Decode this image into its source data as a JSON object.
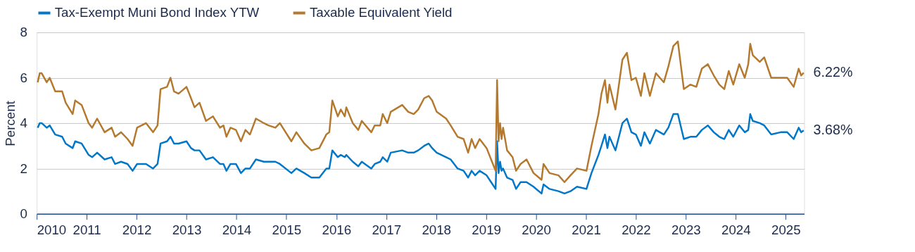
{
  "chart_data": {
    "type": "line",
    "ylabel": "Percent",
    "grid": "y",
    "legend": "top",
    "xlim": [
      2010,
      2025.37
    ],
    "xticks": [
      2010,
      2011,
      2012,
      2013,
      2014,
      2015,
      2016,
      2017,
      2018,
      2019,
      2020,
      2021,
      2022,
      2023,
      2024,
      2025
    ],
    "ylim": [
      0,
      8
    ],
    "yticks": [
      0,
      2,
      4,
      6,
      8
    ],
    "x": [
      2010.02,
      2010.06,
      2010.1,
      2010.2,
      2010.26,
      2010.37,
      2010.51,
      2010.58,
      2010.72,
      2010.77,
      2010.9,
      2011.04,
      2011.11,
      2011.21,
      2011.36,
      2011.5,
      2011.57,
      2011.69,
      2011.82,
      2011.92,
      2012.01,
      2012.19,
      2012.33,
      2012.42,
      2012.48,
      2012.61,
      2012.68,
      2012.75,
      2012.84,
      2013.0,
      2013.09,
      2013.16,
      2013.26,
      2013.39,
      2013.53,
      2013.67,
      2013.74,
      2013.8,
      2013.88,
      2013.99,
      2014.09,
      2014.18,
      2014.27,
      2014.39,
      2014.55,
      2014.64,
      2014.78,
      2014.87,
      2015.1,
      2015.2,
      2015.36,
      2015.5,
      2015.66,
      2015.8,
      2015.86,
      2015.92,
      2016.03,
      2016.09,
      2016.17,
      2016.2,
      2016.33,
      2016.44,
      2016.51,
      2016.7,
      2016.77,
      2016.88,
      2016.93,
      2017.02,
      2017.09,
      2017.32,
      2017.44,
      2017.55,
      2017.64,
      2017.76,
      2017.85,
      2017.92,
      2018.01,
      2018.2,
      2018.29,
      2018.43,
      2018.55,
      2018.64,
      2018.71,
      2018.78,
      2018.87,
      2019.01,
      2019.1,
      2019.19,
      2019.22,
      2019.25,
      2019.28,
      2019.31,
      2019.34,
      2019.42,
      2019.53,
      2019.6,
      2019.69,
      2019.81,
      2019.95,
      2020.11,
      2020.15,
      2020.27,
      2020.45,
      2020.57,
      2020.69,
      2020.82,
      2021.01,
      2021.11,
      2021.25,
      2021.31,
      2021.38,
      2021.43,
      2021.47,
      2021.59,
      2021.73,
      2021.82,
      2021.91,
      2022.0,
      2022.1,
      2022.17,
      2022.28,
      2022.4,
      2022.56,
      2022.65,
      2022.75,
      2022.84,
      2022.96,
      2023.09,
      2023.21,
      2023.32,
      2023.44,
      2023.56,
      2023.67,
      2023.77,
      2023.86,
      2023.95,
      2024.07,
      2024.18,
      2024.25,
      2024.29,
      2024.34,
      2024.48,
      2024.57,
      2024.71,
      2024.9,
      2025.03,
      2025.16,
      2025.26,
      2025.31,
      2025.36
    ],
    "series": [
      {
        "name": "Tax-Exempt Muni Bond Index YTW",
        "color": "#0077c8",
        "values": [
          3.8,
          4.0,
          4.0,
          3.8,
          3.9,
          3.5,
          3.4,
          3.1,
          2.9,
          3.2,
          3.1,
          2.6,
          2.5,
          2.7,
          2.4,
          2.5,
          2.2,
          2.3,
          2.2,
          1.9,
          2.2,
          2.2,
          2.0,
          2.2,
          3.1,
          3.2,
          3.4,
          3.1,
          3.1,
          3.2,
          2.9,
          2.8,
          2.8,
          2.4,
          2.5,
          2.2,
          2.2,
          1.9,
          2.2,
          2.2,
          1.8,
          2.0,
          2.0,
          2.4,
          2.3,
          2.3,
          2.3,
          2.2,
          1.8,
          2.0,
          1.8,
          1.6,
          1.6,
          2.0,
          2.0,
          2.8,
          2.5,
          2.6,
          2.5,
          2.6,
          2.3,
          2.1,
          2.3,
          2.0,
          2.2,
          2.3,
          2.5,
          2.3,
          2.7,
          2.8,
          2.7,
          2.7,
          2.8,
          3.0,
          3.1,
          2.9,
          2.7,
          2.5,
          2.4,
          2.0,
          1.9,
          1.6,
          1.9,
          1.7,
          1.9,
          1.7,
          1.4,
          1.1,
          3.2,
          1.8,
          2.3,
          1.9,
          2.0,
          1.6,
          1.5,
          1.1,
          1.4,
          1.4,
          1.2,
          0.9,
          1.3,
          1.1,
          1.0,
          0.9,
          1.0,
          1.2,
          1.1,
          1.8,
          2.6,
          3.0,
          3.5,
          2.9,
          3.4,
          2.8,
          4.0,
          4.2,
          3.6,
          3.5,
          3.0,
          3.6,
          3.1,
          3.7,
          3.5,
          3.8,
          4.4,
          4.4,
          3.3,
          3.4,
          3.4,
          3.7,
          3.9,
          3.6,
          3.4,
          3.3,
          3.7,
          3.4,
          3.9,
          3.6,
          3.7,
          4.4,
          4.1,
          4.0,
          3.9,
          3.5,
          3.6,
          3.6,
          3.3,
          3.8,
          3.6,
          3.68
        ]
      },
      {
        "name": "Taxable Equivalent Yield",
        "color": "#b5792e",
        "values": [
          5.8,
          6.2,
          6.2,
          5.8,
          6.0,
          5.4,
          5.4,
          4.9,
          4.4,
          5.0,
          4.8,
          4.0,
          3.8,
          4.2,
          3.6,
          3.8,
          3.4,
          3.6,
          3.3,
          3.0,
          3.8,
          4.0,
          3.6,
          3.9,
          5.5,
          5.6,
          6.0,
          5.4,
          5.3,
          5.6,
          5.1,
          4.7,
          4.9,
          4.1,
          4.3,
          3.8,
          3.9,
          3.4,
          3.8,
          3.7,
          3.2,
          3.7,
          3.5,
          4.2,
          4.0,
          3.9,
          3.8,
          4.0,
          3.2,
          3.6,
          3.1,
          2.8,
          2.9,
          3.5,
          3.6,
          5.0,
          4.3,
          4.6,
          4.3,
          4.7,
          4.0,
          3.7,
          4.1,
          3.6,
          3.9,
          3.9,
          4.4,
          4.0,
          4.5,
          4.8,
          4.5,
          4.4,
          4.6,
          5.1,
          5.2,
          5.0,
          4.5,
          4.2,
          3.9,
          3.4,
          3.3,
          2.7,
          3.3,
          2.9,
          3.3,
          2.9,
          2.4,
          1.9,
          5.9,
          3.2,
          4.0,
          3.3,
          3.8,
          2.8,
          2.5,
          1.9,
          2.2,
          2.4,
          1.8,
          1.5,
          2.2,
          1.8,
          1.7,
          1.4,
          1.7,
          2.0,
          1.9,
          3.0,
          4.4,
          5.3,
          5.9,
          4.9,
          5.7,
          4.6,
          6.8,
          7.1,
          5.9,
          6.0,
          5.2,
          6.2,
          5.2,
          6.2,
          5.8,
          6.5,
          7.4,
          7.6,
          5.5,
          5.7,
          5.6,
          6.4,
          6.6,
          6.1,
          5.7,
          5.5,
          6.3,
          5.7,
          6.6,
          6.0,
          6.6,
          7.5,
          7.0,
          6.7,
          6.9,
          6.0,
          6.0,
          6.0,
          5.6,
          6.4,
          6.1,
          6.22
        ]
      }
    ],
    "annotations": [
      {
        "text": "6.22%",
        "x": 2025.36,
        "y": 6.22
      },
      {
        "text": "3.68%",
        "x": 2025.36,
        "y": 3.68
      }
    ]
  }
}
